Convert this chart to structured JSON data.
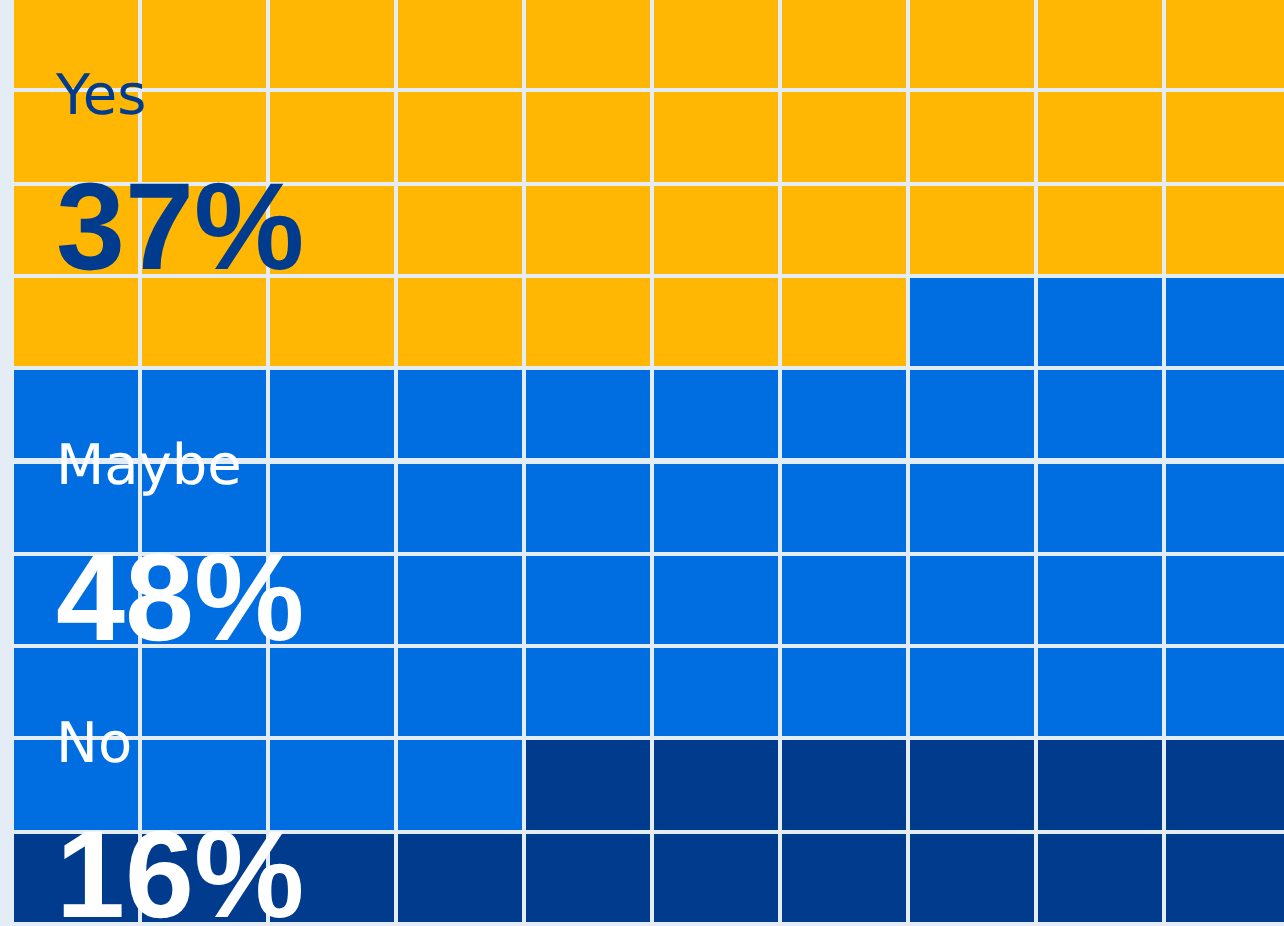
{
  "chart_data": {
    "type": "other",
    "categories": [
      "Yes",
      "Maybe",
      "No"
    ],
    "values": [
      37,
      48,
      16
    ],
    "value_labels": [
      "37%",
      "48%",
      "16%"
    ],
    "colors": [
      "#ffb703",
      "#006de0",
      "#003b8e"
    ]
  }
}
